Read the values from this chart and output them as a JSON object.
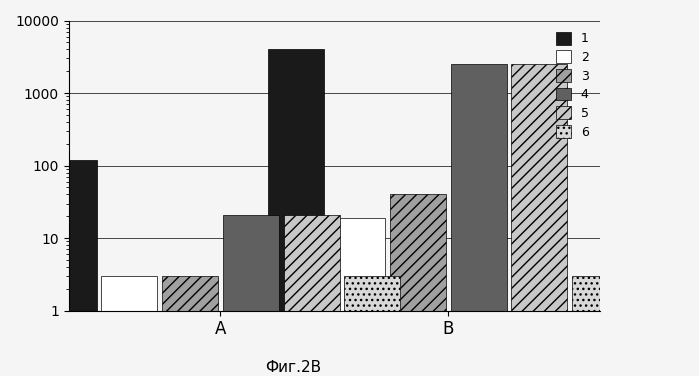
{
  "groups": [
    "A",
    "B"
  ],
  "series": [
    1,
    2,
    3,
    4,
    5,
    6
  ],
  "values": {
    "A": [
      120,
      2,
      2,
      20,
      20,
      2
    ],
    "B": [
      4000,
      18,
      40,
      2500,
      2500,
      2
    ]
  },
  "colors": [
    "#1a1a1a",
    "#ffffff",
    "#a0a0a0",
    "#606060",
    "#c8c8c8",
    "#d8d8d8"
  ],
  "hatches": [
    "",
    "",
    "///",
    "===",
    "///",
    "..."
  ],
  "ylim": [
    1,
    10000
  ],
  "yticks": [
    1,
    10,
    100,
    1000,
    10000
  ],
  "xlabel": "",
  "ylabel": "",
  "title": "",
  "caption": "Фиг.2В",
  "legend_labels": [
    "1",
    "2",
    "3",
    "4",
    "5",
    "6"
  ]
}
